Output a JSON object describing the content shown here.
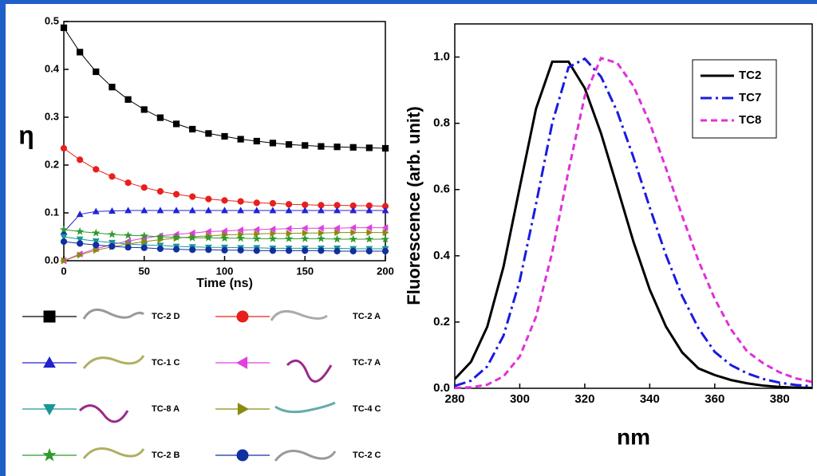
{
  "chart_data": [
    {
      "type": "line",
      "xlabel": "Time (ns)",
      "ylabel": "η",
      "x": [
        0,
        10,
        20,
        30,
        40,
        50,
        60,
        70,
        80,
        90,
        100,
        110,
        120,
        130,
        140,
        150,
        160,
        170,
        180,
        190,
        200
      ],
      "xlim": [
        0,
        200
      ],
      "xticks": [
        0,
        50,
        100,
        150,
        200
      ],
      "ylim": [
        0,
        0.5
      ],
      "yticks": [
        {
          "value": 0,
          "label": "0.0"
        },
        0.1,
        0.2,
        0.3,
        0.4,
        0.5
      ],
      "legend": "below",
      "series": [
        {
          "name": "TC-2 D",
          "color": "#000000",
          "marker": "square",
          "values": [
            0.487,
            0.436,
            0.395,
            0.363,
            0.337,
            0.316,
            0.299,
            0.286,
            0.275,
            0.266,
            0.26,
            0.254,
            0.25,
            0.246,
            0.243,
            0.241,
            0.239,
            0.238,
            0.237,
            0.236,
            0.235
          ]
        },
        {
          "name": "TC-2 A",
          "color": "#e8201c",
          "marker": "circle",
          "values": [
            0.235,
            0.211,
            0.191,
            0.176,
            0.163,
            0.153,
            0.145,
            0.139,
            0.134,
            0.129,
            0.126,
            0.124,
            0.121,
            0.12,
            0.118,
            0.117,
            0.116,
            0.116,
            0.115,
            0.115,
            0.114
          ]
        },
        {
          "name": "TC-1 C",
          "color": "#2323d0",
          "marker": "triangle-up",
          "values": [
            0.06,
            0.097,
            0.103,
            0.104,
            0.105,
            0.105,
            0.105,
            0.105,
            0.105,
            0.105,
            0.105,
            0.105,
            0.105,
            0.105,
            0.105,
            0.105,
            0.105,
            0.105,
            0.105,
            0.105,
            0.105
          ]
        },
        {
          "name": "TC-7 A",
          "color": "#e040e0",
          "marker": "triangle-left",
          "values": [
            0,
            0.014,
            0.025,
            0.034,
            0.041,
            0.047,
            0.052,
            0.055,
            0.058,
            0.061,
            0.062,
            0.064,
            0.065,
            0.066,
            0.067,
            0.068,
            0.068,
            0.068,
            0.069,
            0.069,
            0.069
          ]
        },
        {
          "name": "TC-8 A",
          "color": "#1a9696",
          "marker": "triangle-down",
          "values": [
            0.05,
            0.045,
            0.041,
            0.038,
            0.035,
            0.033,
            0.032,
            0.03,
            0.029,
            0.028,
            0.028,
            0.027,
            0.027,
            0.026,
            0.026,
            0.026,
            0.026,
            0.026,
            0.025,
            0.025,
            0.025
          ]
        },
        {
          "name": "TC-4 C",
          "color": "#8a8a10",
          "marker": "triangle-right",
          "values": [
            0,
            0.012,
            0.022,
            0.029,
            0.035,
            0.04,
            0.044,
            0.047,
            0.05,
            0.052,
            0.054,
            0.055,
            0.056,
            0.057,
            0.057,
            0.058,
            0.058,
            0.059,
            0.059,
            0.059,
            0.059
          ]
        },
        {
          "name": "TC-2 B",
          "color": "#2e9a2e",
          "marker": "star",
          "values": [
            0.065,
            0.061,
            0.058,
            0.055,
            0.053,
            0.052,
            0.05,
            0.049,
            0.048,
            0.048,
            0.047,
            0.047,
            0.046,
            0.046,
            0.046,
            0.046,
            0.046,
            0.045,
            0.045,
            0.045,
            0.045
          ]
        },
        {
          "name": "TC-2 C",
          "color": "#1030a0",
          "marker": "circle",
          "values": [
            0.04,
            0.036,
            0.033,
            0.03,
            0.028,
            0.027,
            0.025,
            0.024,
            0.023,
            0.023,
            0.022,
            0.022,
            0.021,
            0.021,
            0.021,
            0.021,
            0.021,
            0.02,
            0.02,
            0.02,
            0.02
          ]
        }
      ]
    },
    {
      "type": "line",
      "xlabel": "nm",
      "ylabel": "Fluorescence (arb. unit)",
      "x": [
        280,
        285,
        290,
        295,
        300,
        305,
        310,
        315,
        320,
        325,
        330,
        335,
        340,
        345,
        350,
        355,
        360,
        365,
        370,
        375,
        380,
        385,
        390
      ],
      "xlim": [
        280,
        390
      ],
      "xticks": [
        280,
        300,
        320,
        340,
        360,
        380
      ],
      "ylim": [
        0,
        1.1
      ],
      "yticks": [
        {
          "value": 0,
          "label": "0.0"
        },
        0.2,
        0.4,
        0.6,
        0.8,
        {
          "value": 1,
          "label": "1.0"
        }
      ],
      "legend": "upper right",
      "series": [
        {
          "name": "TC2",
          "color": "#000000",
          "dash": "solid",
          "values": [
            0.028,
            0.08,
            0.186,
            0.367,
            0.607,
            0.844,
            0.986,
            0.986,
            0.906,
            0.77,
            0.607,
            0.442,
            0.298,
            0.186,
            0.108,
            0.06,
            0.04,
            0.025,
            0.015,
            0.008,
            0.004,
            0.002,
            0.001
          ]
        },
        {
          "name": "TC7",
          "color": "#1a1ae0",
          "dash": "dashdot",
          "values": [
            0.007,
            0.023,
            0.066,
            0.159,
            0.325,
            0.556,
            0.801,
            0.969,
            0.995,
            0.941,
            0.835,
            0.697,
            0.546,
            0.402,
            0.278,
            0.181,
            0.11,
            0.07,
            0.045,
            0.028,
            0.017,
            0.01,
            0.006
          ]
        },
        {
          "name": "TC8",
          "color": "#e030d8",
          "dash": "dash",
          "values": [
            0.001,
            0.003,
            0.011,
            0.036,
            0.096,
            0.216,
            0.411,
            0.657,
            0.882,
            0.997,
            0.982,
            0.912,
            0.801,
            0.664,
            0.52,
            0.385,
            0.27,
            0.178,
            0.111,
            0.075,
            0.048,
            0.03,
            0.019
          ]
        }
      ]
    }
  ]
}
